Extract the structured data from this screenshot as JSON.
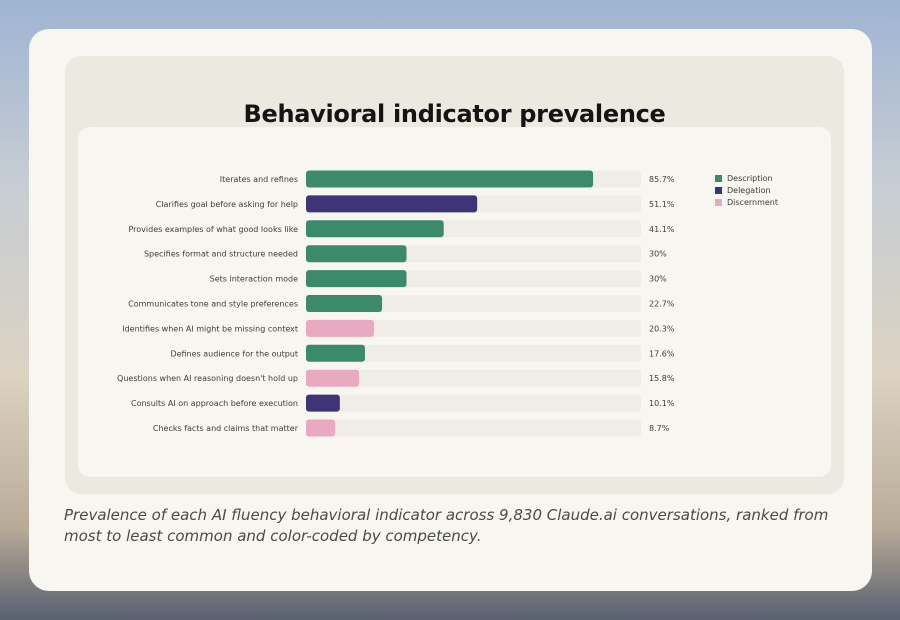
{
  "chart_data": {
    "type": "bar",
    "orientation": "horizontal",
    "title": "Behavioral indicator prevalence",
    "categories": [
      "Iterates and refines",
      "Clarifies goal before asking for help",
      "Provides examples of what good looks like",
      "Specifies format and structure needed",
      "Sets interaction mode",
      "Communicates tone and style preferences",
      "Identifies when AI might be missing context",
      "Defines audience for the output",
      "Questions when AI reasoning doesn't hold up",
      "Consults AI on approach before execution",
      "Checks facts and claims that matter"
    ],
    "values": [
      85.7,
      51.1,
      41.1,
      30,
      30,
      22.7,
      20.3,
      17.6,
      15.8,
      10.1,
      8.7
    ],
    "value_labels": [
      "85.7%",
      "51.1%",
      "41.1%",
      "30%",
      "30%",
      "22.7%",
      "20.3%",
      "17.6%",
      "15.8%",
      "10.1%",
      "8.7%"
    ],
    "competency": [
      "Description",
      "Delegation",
      "Description",
      "Description",
      "Description",
      "Description",
      "Discernment",
      "Description",
      "Discernment",
      "Delegation",
      "Discernment"
    ],
    "legend": [
      {
        "name": "Description",
        "color": "#3b8a6c"
      },
      {
        "name": "Delegation",
        "color": "#3d3577"
      },
      {
        "name": "Discernment",
        "color": "#e9a9c0"
      }
    ],
    "xlim": [
      0,
      100
    ],
    "track_color": "#efede6",
    "legend_placement": "top-right",
    "grid": false
  },
  "caption": "Prevalence of each AI fluency behavioral indicator across 9,830 Claude.ai conversations, ranked from most to least common and color-coded by competency."
}
